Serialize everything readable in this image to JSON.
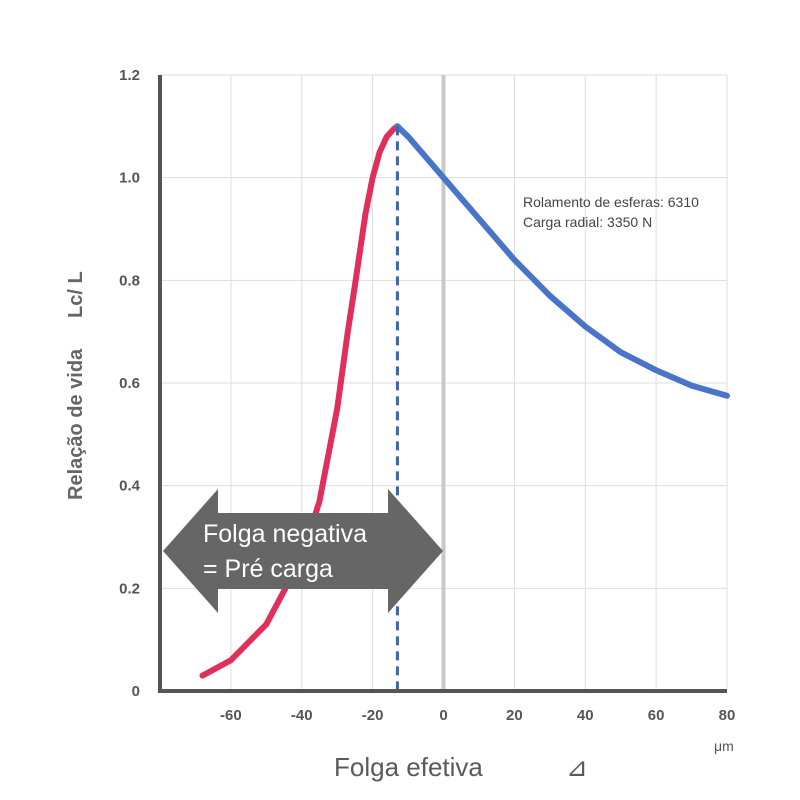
{
  "chart_data": {
    "type": "line",
    "xlabel": "Folga efetiva",
    "xlabel_symbol": "⊿",
    "x_unit": "μm",
    "ylabel": "Relação de vida",
    "ylabel_suffix": "Lc/ L",
    "xlim": [
      -80,
      80
    ],
    "ylim": [
      0,
      1.2
    ],
    "x_ticks": [
      -60,
      -40,
      -20,
      0,
      20,
      40,
      60,
      80
    ],
    "y_ticks": [
      0,
      0.2,
      0.4,
      0.6,
      0.8,
      1.0,
      1.2
    ],
    "y_tick_labels": [
      "0",
      "0.2",
      "0.4",
      "0.6",
      "0.8",
      "1.0",
      "1.2"
    ],
    "grid": true,
    "annotation": [
      "Rolamento de esferas: 6310",
      "Carga radial: 3350 N"
    ],
    "arrow_text": [
      "Folga negativa",
      "= Pré carga"
    ],
    "peak_x": -13,
    "series": [
      {
        "color": "#e0305a",
        "x": [
          -68,
          -60,
          -50,
          -40,
          -35,
          -30,
          -27,
          -25,
          -22,
          -20,
          -18,
          -16,
          -14,
          -13
        ],
        "y": [
          0.03,
          0.06,
          0.13,
          0.26,
          0.37,
          0.55,
          0.7,
          0.79,
          0.93,
          1.0,
          1.05,
          1.08,
          1.095,
          1.1
        ]
      },
      {
        "color": "#4a74c9",
        "x": [
          -13,
          -10,
          -5,
          0,
          5,
          10,
          20,
          30,
          40,
          50,
          60,
          70,
          80
        ],
        "y": [
          1.1,
          1.08,
          1.04,
          1.0,
          0.96,
          0.92,
          0.84,
          0.77,
          0.71,
          0.66,
          0.625,
          0.595,
          0.575
        ]
      }
    ],
    "colors": {
      "axis": "#555555",
      "grid": "#dddddd",
      "zero_line": "#c8c8c8",
      "dashed": "#3f63b0",
      "arrow": "#666666"
    }
  }
}
